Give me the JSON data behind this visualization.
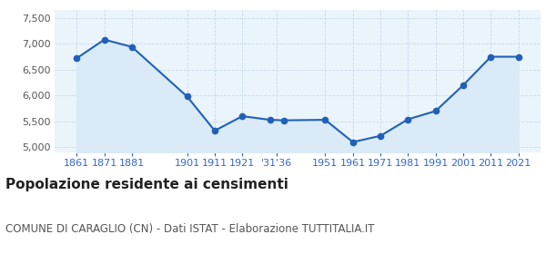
{
  "years": [
    1861,
    1871,
    1881,
    1901,
    1911,
    1921,
    1931,
    1936,
    1951,
    1961,
    1971,
    1981,
    1991,
    2001,
    2011,
    2021
  ],
  "population": [
    6720,
    7080,
    6940,
    5980,
    5320,
    5600,
    5530,
    5520,
    5530,
    5100,
    5220,
    5540,
    5700,
    6200,
    6750,
    6750
  ],
  "ylim": [
    4900,
    7650
  ],
  "xlim": [
    1853,
    2029
  ],
  "yticks": [
    5000,
    5500,
    6000,
    6500,
    7000,
    7500
  ],
  "ytick_labels": [
    "5,000",
    "5,500",
    "6,000",
    "6,500",
    "7,000",
    "7,500"
  ],
  "xtick_positions": [
    1861,
    1871,
    1881,
    1901,
    1911,
    1921,
    1933.5,
    1951,
    1961,
    1971,
    1981,
    1991,
    2001,
    2011,
    2021
  ],
  "xtick_labels": [
    "1861",
    "1871",
    "1881",
    "1901",
    "1911",
    "1921",
    "'31'36",
    "1951",
    "1961",
    "1971",
    "1981",
    "1991",
    "2001",
    "2011",
    "2021"
  ],
  "line_color": "#2060b8",
  "fill_color": "#daeaf7",
  "marker_size": 4.5,
  "grid_color": "#c8d8e8",
  "bg_axes": "#eaf4fb",
  "title": "Popolazione residente ai censimenti",
  "subtitle": "COMUNE DI CARAGLIO (CN) - Dati ISTAT - Elaborazione TUTTITALIA.IT",
  "title_fontsize": 11,
  "subtitle_fontsize": 8.5,
  "tick_fontsize": 8,
  "bg_color": "#ffffff"
}
